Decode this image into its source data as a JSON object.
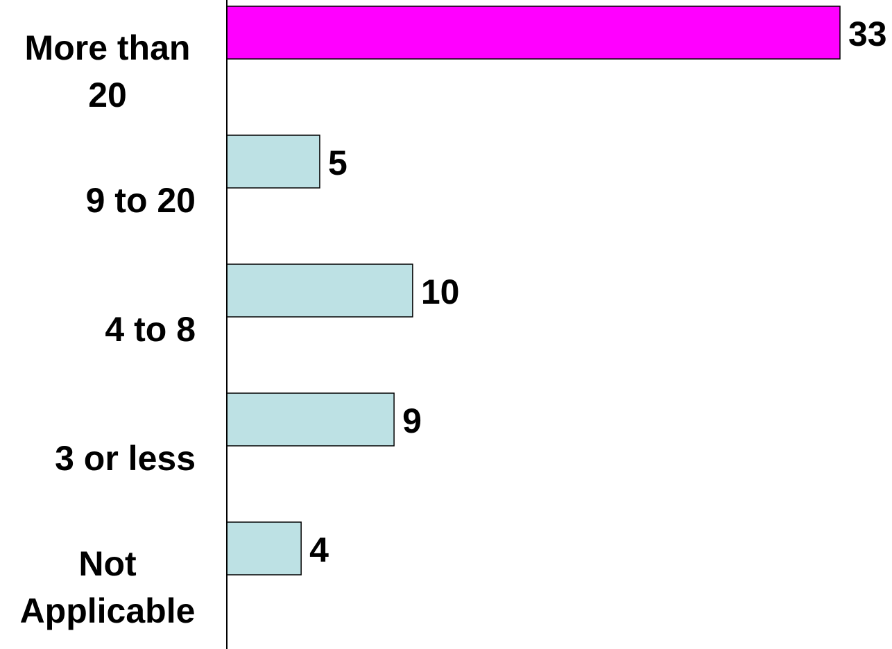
{
  "chart_data": {
    "type": "bar",
    "orientation": "horizontal",
    "categories": [
      [
        "More than",
        "20"
      ],
      [
        "9 to 20"
      ],
      [
        "4 to 8"
      ],
      [
        "3 or less"
      ],
      [
        "Not",
        "Applicable"
      ]
    ],
    "values": [
      33,
      5,
      10,
      9,
      4
    ],
    "value_labels": [
      "33",
      "5",
      "10",
      "9",
      "4"
    ],
    "bar_colors": [
      "#ff00ff",
      "#bde1e4",
      "#bde1e4",
      "#bde1e4",
      "#bde1e4"
    ],
    "xlim": [
      0,
      33
    ],
    "grid": false,
    "legend": "none",
    "title": "",
    "xlabel": "",
    "ylabel": ""
  }
}
